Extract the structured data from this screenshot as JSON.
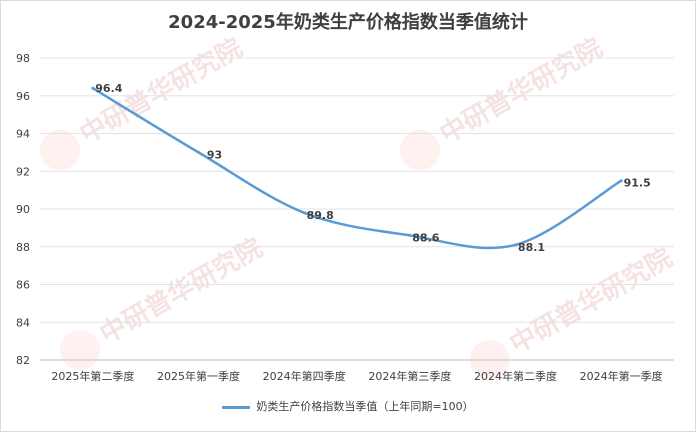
{
  "chart_data": {
    "type": "line",
    "title": "2024-2025年奶类生产价格指数当季值统计",
    "categories": [
      "2025年第二季度",
      "2025年第一季度",
      "2024年第四季度",
      "2024年第三季度",
      "2024年第二季度",
      "2024年第一季度"
    ],
    "series": [
      {
        "name": "奶类生产价格指数当季值（上年同期=100）",
        "values": [
          96.4,
          93,
          89.8,
          88.6,
          88.1,
          91.5
        ],
        "color": "#5b9bd5"
      }
    ],
    "ylim": [
      82,
      98
    ],
    "yticks": [
      82,
      84,
      86,
      88,
      90,
      92,
      94,
      96,
      98
    ],
    "xlabel": "",
    "ylabel": "",
    "grid": true,
    "legend": "bottom"
  }
}
